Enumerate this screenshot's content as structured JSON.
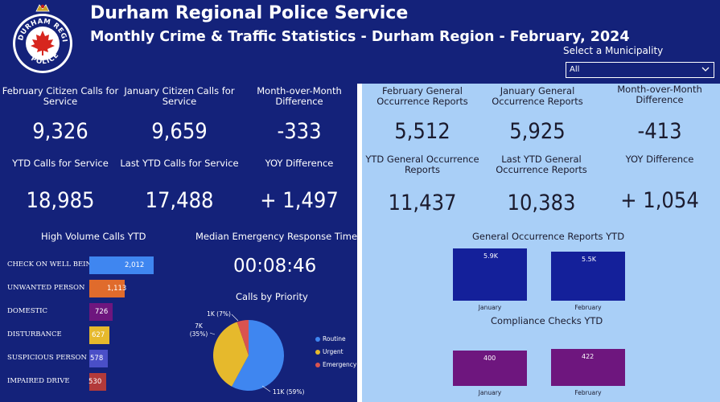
{
  "header": {
    "title": "Durham Regional Police Service",
    "subtitle": "Monthly Crime & Traffic Statistics - Durham Region - February, 2024",
    "logo_text": "DURHAM REGIONAL POLICE",
    "municipality_label": "Select a Municipality",
    "municipality_value": "All"
  },
  "calls": {
    "feb_label": "February Citizen Calls for Service",
    "feb_value": "9,326",
    "jan_label": "January Citizen Calls for Service",
    "jan_value": "9,659",
    "mom_label": "Month-over-Month Difference",
    "mom_value": "-333",
    "ytd_label": "YTD Calls for Service",
    "ytd_value": "18,985",
    "last_ytd_label": "Last YTD Calls for Service",
    "last_ytd_value": "17,488",
    "yoy_label": "YOY Difference",
    "yoy_value": "+ 1,497"
  },
  "occurrence": {
    "feb_label": "February General Occurrence Reports",
    "feb_value": "5,512",
    "jan_label": "January General Occurrence Reports",
    "jan_value": "5,925",
    "mom_label": "Month-over-Month Difference",
    "mom_value": "-413",
    "ytd_label": "YTD General Occurrence Reports",
    "ytd_value": "11,437",
    "last_ytd_label": "Last YTD General Occurrence Reports",
    "last_ytd_value": "10,383",
    "yoy_label": "YOY Difference",
    "yoy_value": "+ 1,054"
  },
  "response": {
    "title": "Median Emergency Response Time",
    "value": "00:08:46"
  },
  "chart_data": [
    {
      "type": "bar",
      "orientation": "horizontal",
      "title": "High Volume Calls YTD",
      "categories": [
        "CHECK ON WELL BEING",
        "UNWANTED PERSON",
        "DOMESTIC",
        "DISTURBANCE",
        "SUSPICIOUS PERSON",
        "IMPAIRED DRIVE"
      ],
      "values": [
        2012,
        1113,
        726,
        627,
        578,
        530
      ],
      "labels": [
        "2,012",
        "1,113",
        "726",
        "627",
        "578",
        "530"
      ],
      "colors": [
        "#3f86f0",
        "#e06b2c",
        "#6e167e",
        "#e6b92c",
        "#4a4fc7",
        "#b33a3a"
      ]
    },
    {
      "type": "pie",
      "title": "Calls by Priority",
      "categories": [
        "Routine",
        "Urgent",
        "Emergency"
      ],
      "values": [
        11000,
        7000,
        1000
      ],
      "labels": [
        "11K (59%)",
        "7K (35%)",
        "1K (7%)"
      ],
      "colors": [
        "#3f86f0",
        "#e6b92c",
        "#d9534f"
      ]
    },
    {
      "type": "bar",
      "title": "General Occurrence Reports YTD",
      "categories": [
        "January",
        "February"
      ],
      "values": [
        5900,
        5500
      ],
      "labels": [
        "5.9K",
        "5.5K"
      ],
      "colors": [
        "#14209a",
        "#14209a"
      ]
    },
    {
      "type": "bar",
      "title": "Compliance Checks YTD",
      "categories": [
        "January",
        "February"
      ],
      "values": [
        400,
        422
      ],
      "labels": [
        "400",
        "422"
      ],
      "colors": [
        "#6e167e",
        "#6e167e"
      ]
    }
  ]
}
